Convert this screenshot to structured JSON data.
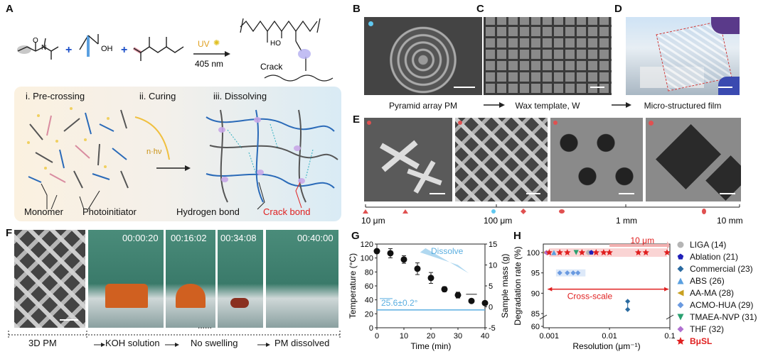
{
  "panels": {
    "A": {
      "label": "A",
      "uv_label": "UV",
      "wavelength": "405 nm",
      "crack_label": "Crack",
      "oh_label": "OH",
      "ho_label": "HO",
      "n_label": "N",
      "o_label": "O",
      "steps": [
        "i. Pre-crossing",
        "ii. Curing",
        "iii. Dissolving"
      ],
      "energy_label": "n·hν",
      "legend": [
        "Monomer",
        "Photoinitiator",
        "Hydrogen bond",
        "Crack bond"
      ]
    },
    "B": {
      "label": "B",
      "caption": "Pyramid array PM"
    },
    "C": {
      "label": "C",
      "caption": "Wax template, W"
    },
    "D": {
      "label": "D",
      "caption": "Micro-structured film"
    },
    "E": {
      "label": "E",
      "scale_ticks": [
        "10 μm",
        "100 μm",
        "1 mm",
        "10 mm"
      ]
    },
    "F": {
      "label": "F",
      "timestamps": [
        "00:00:20",
        "00:16:02",
        "00:34:08",
        "00:40:00"
      ],
      "captions": [
        "3D PM",
        "KOH solution",
        "No swelling",
        "PM dissolved"
      ],
      "dots": "......"
    },
    "G": {
      "label": "G",
      "xlabel": "Time (min)",
      "ylabel_left": "Temperature (°C)",
      "ylabel_right": "Sample mass (g)",
      "annotation": "Dissolve",
      "temp_annotation": "25.6±0.2°"
    },
    "H": {
      "label": "H",
      "xlabel": "Resolution (μm⁻¹)",
      "ylabel": "Degradation rate (%)",
      "annotation_top": "10 μm",
      "annotation_mid": "Cross-scale",
      "legend": [
        {
          "name": "LIGA (14)",
          "color": "#b5b5b5",
          "shape": "circle"
        },
        {
          "name": "Ablation (21)",
          "color": "#1f1fb8",
          "shape": "pentagon"
        },
        {
          "name": "Commercial (23)",
          "color": "#2a6aa0",
          "shape": "diamond"
        },
        {
          "name": "ABS (26)",
          "color": "#5aa0e0",
          "shape": "triangle-up"
        },
        {
          "name": "AA-MA (28)",
          "color": "#c8a020",
          "shape": "triangle-left"
        },
        {
          "name": "ACMO-HUA (29)",
          "color": "#6a9ae0",
          "shape": "diamond"
        },
        {
          "name": "TMAEA-NVP (31)",
          "color": "#2aa070",
          "shape": "triangle-down"
        },
        {
          "name": "THF (32)",
          "color": "#b070d0",
          "shape": "diamond"
        },
        {
          "name": "BμSL",
          "color": "#e02020",
          "shape": "star"
        }
      ]
    }
  },
  "chart_data": [
    {
      "type": "scatter",
      "panel": "G",
      "xlabel": "Time (min)",
      "ylabel": "Temperature (°C)",
      "y2label": "Sample mass (g)",
      "xlim": [
        0,
        40
      ],
      "ylim": [
        0,
        120
      ],
      "y2lim": [
        -5,
        15
      ],
      "x_ticks": [
        0,
        10,
        20,
        30,
        40
      ],
      "y_ticks": [
        0,
        20,
        40,
        60,
        80,
        100,
        120
      ],
      "y2_ticks": [
        -5,
        0,
        5,
        10,
        15
      ],
      "series": [
        {
          "name": "Sample mass",
          "x": [
            0,
            5,
            10,
            15,
            20,
            25,
            30,
            35,
            40
          ],
          "y": [
            13.3,
            12.8,
            11.3,
            9.1,
            6.9,
            4.2,
            2.8,
            1.4,
            0.9
          ],
          "err": [
            0.5,
            1.1,
            0.9,
            1.4,
            1.3,
            0.6,
            0.7,
            0.3,
            0.3
          ]
        }
      ],
      "temperature_line": 25.6
    },
    {
      "type": "scatter",
      "panel": "H",
      "xlabel": "Resolution (μm⁻¹)",
      "ylabel": "Degradation rate (%)",
      "xscale": "log",
      "xlim": [
        0.0008,
        0.1
      ],
      "x_ticks": [
        "0.001",
        "0.01",
        "0.1"
      ],
      "y_ticks": [
        60,
        85,
        90,
        95,
        100
      ],
      "series": [
        {
          "name": "LIGA (14)",
          "x": [
            0.0045
          ],
          "y": [
            100
          ]
        },
        {
          "name": "Ablation (21)",
          "x": [
            0.005
          ],
          "y": [
            100
          ]
        },
        {
          "name": "Commercial (23)",
          "x": [
            0.02,
            0.02
          ],
          "y": [
            88,
            86
          ]
        },
        {
          "name": "ABS (26)",
          "x": [
            0.0012
          ],
          "y": [
            100
          ]
        },
        {
          "name": "AA-MA (28)",
          "x": [
            0.00085
          ],
          "y": [
            100
          ]
        },
        {
          "name": "ACMO-HUA (29)",
          "x": [
            0.0015,
            0.002,
            0.0025,
            0.003
          ],
          "y": [
            95,
            95,
            95,
            95
          ]
        },
        {
          "name": "TMAEA-NVP (31)",
          "x": [
            0.0028
          ],
          "y": [
            100
          ]
        },
        {
          "name": "THF (32)",
          "x": [
            0.0009
          ],
          "y": [
            100
          ]
        },
        {
          "name": "BμSL",
          "x": [
            0.001,
            0.0015,
            0.002,
            0.0035,
            0.006,
            0.008,
            0.01,
            0.03,
            0.04,
            0.09
          ],
          "y": [
            100,
            100,
            100,
            100,
            100,
            100,
            100,
            100,
            100,
            100
          ]
        }
      ]
    }
  ]
}
